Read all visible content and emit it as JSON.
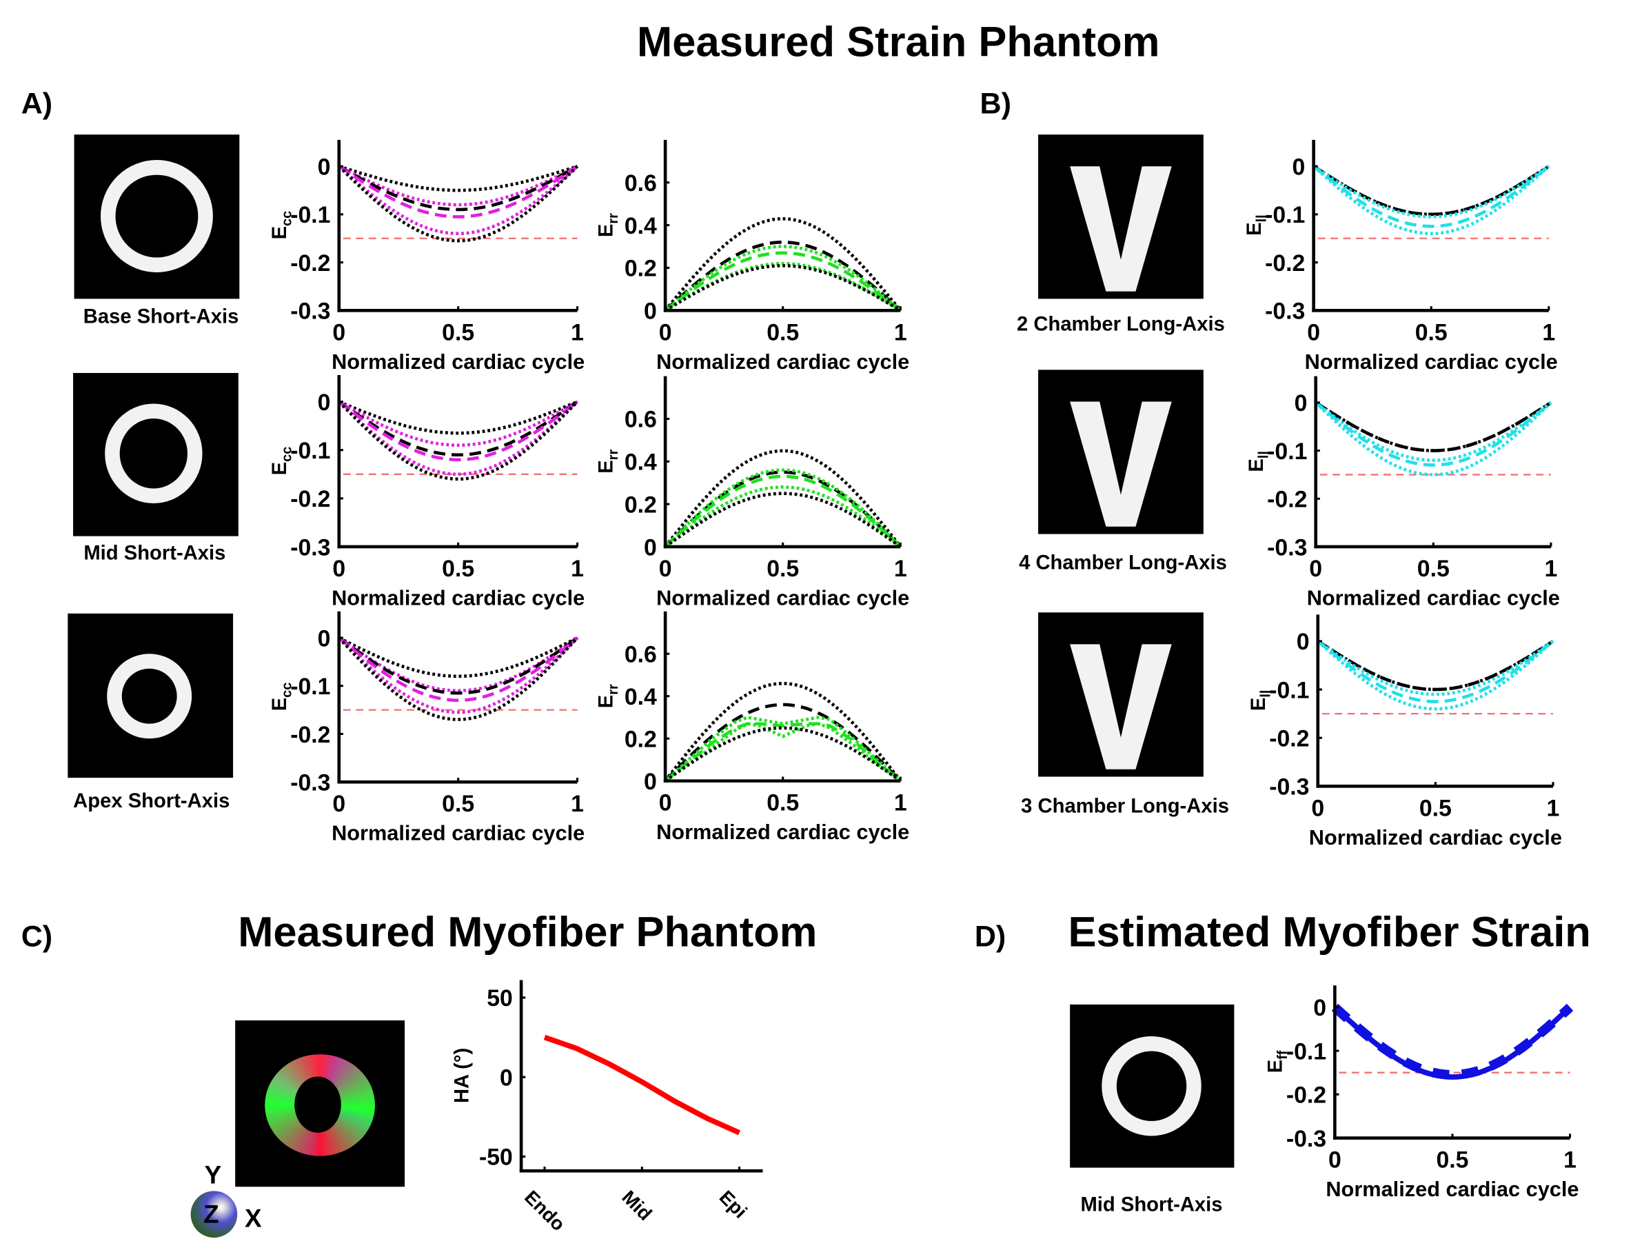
{
  "titles": {
    "main": "Measured Strain Phantom",
    "c": "Measured Myofiber Phantom",
    "d": "Estimated Myofiber Strain"
  },
  "panels": {
    "a": "A)",
    "b": "B)",
    "c": "C)",
    "d": "D)"
  },
  "image_labels": {
    "base": "Base Short-Axis",
    "mid": "Mid Short-Axis",
    "apex": "Apex Short-Axis",
    "ch2": "2 Chamber Long-Axis",
    "ch4": "4 Chamber Long-Axis",
    "ch3": "3 Chamber Long-Axis",
    "d_mid": "Mid Short-Axis"
  },
  "triad": {
    "y": "Y",
    "z": "Z",
    "x": "X"
  },
  "colors": {
    "magenta": "#e020e0",
    "green": "#20e020",
    "cyan": "#20e0e8",
    "blue": "#1010e0",
    "red": "#ff0000",
    "ref": "#f07070",
    "black": "#000000"
  },
  "chart_data": [
    {
      "id": "ecc-base",
      "type": "line",
      "ylabel": "E",
      "ylabel_sub": "cc",
      "xlabel": "Normalized cardiac cycle",
      "xlim": [
        0,
        1
      ],
      "ylim": [
        -0.3,
        0.055
      ],
      "xticks": [
        0,
        0.5,
        1
      ],
      "xtick_labels": [
        "0",
        "0.5",
        "1"
      ],
      "yticks": [
        0,
        -0.1,
        -0.2,
        -0.3
      ],
      "ytick_labels": [
        "0",
        "-0.1",
        "-0.2",
        "-0.3"
      ],
      "reference": -0.15,
      "series": [
        {
          "color": "#000000",
          "style": "dotted",
          "peak": -0.05
        },
        {
          "color": "#e020e0",
          "style": "dotted",
          "peak": -0.08
        },
        {
          "color": "#000000",
          "style": "dashed",
          "peak": -0.09
        },
        {
          "color": "#e020e0",
          "style": "dashed",
          "peak": -0.105
        },
        {
          "color": "#e020e0",
          "style": "dotted",
          "peak": -0.14
        },
        {
          "color": "#000000",
          "style": "dotted",
          "peak": -0.155
        }
      ]
    },
    {
      "id": "err-base",
      "type": "line",
      "ylabel": "E",
      "ylabel_sub": "rr",
      "xlabel": "Normalized cardiac cycle",
      "xlim": [
        0,
        1
      ],
      "ylim": [
        0,
        0.8
      ],
      "xticks": [
        0,
        0.5,
        1
      ],
      "xtick_labels": [
        "0",
        "0.5",
        "1"
      ],
      "yticks": [
        0,
        0.2,
        0.4,
        0.6
      ],
      "ytick_labels": [
        "0",
        "0.2",
        "0.4",
        "0.6"
      ],
      "series": [
        {
          "color": "#000000",
          "style": "dotted",
          "peak": 0.43
        },
        {
          "color": "#000000",
          "style": "dashed",
          "peak": 0.32
        },
        {
          "color": "#20e020",
          "style": "dotted",
          "peak": 0.3
        },
        {
          "color": "#20e020",
          "style": "dashed",
          "peak": 0.27
        },
        {
          "color": "#20e020",
          "style": "dotted",
          "peak": 0.22
        },
        {
          "color": "#000000",
          "style": "dotted",
          "peak": 0.21
        }
      ]
    },
    {
      "id": "ell-2ch",
      "type": "line",
      "ylabel": "E",
      "ylabel_sub": "ll",
      "xlabel": "Normalized cardiac cycle",
      "xlim": [
        0,
        1
      ],
      "ylim": [
        -0.3,
        0.055
      ],
      "xticks": [
        0,
        0.5,
        1
      ],
      "xtick_labels": [
        "0",
        "0.5",
        "1"
      ],
      "yticks": [
        0,
        -0.1,
        -0.2,
        -0.3
      ],
      "ytick_labels": [
        "0",
        "-0.1",
        "-0.2",
        "-0.3"
      ],
      "reference": -0.15,
      "series": [
        {
          "color": "#000000",
          "style": "dotted",
          "peak": -0.1
        },
        {
          "color": "#000000",
          "style": "dashed",
          "peak": -0.1
        },
        {
          "color": "#20e0e8",
          "style": "dotted",
          "peak": -0.105
        },
        {
          "color": "#20e0e8",
          "style": "dashed",
          "peak": -0.125
        },
        {
          "color": "#20e0e8",
          "style": "dotted",
          "peak": -0.14
        }
      ]
    },
    {
      "id": "ecc-mid",
      "type": "line",
      "ylabel": "E",
      "ylabel_sub": "cc",
      "xlabel": "Normalized cardiac cycle",
      "xlim": [
        0,
        1
      ],
      "ylim": [
        -0.3,
        0.055
      ],
      "xticks": [
        0,
        0.5,
        1
      ],
      "xtick_labels": [
        "0",
        "0.5",
        "1"
      ],
      "yticks": [
        0,
        -0.1,
        -0.2,
        -0.3
      ],
      "ytick_labels": [
        "0",
        "-0.1",
        "-0.2",
        "-0.3"
      ],
      "reference": -0.15,
      "series": [
        {
          "color": "#000000",
          "style": "dotted",
          "peak": -0.065
        },
        {
          "color": "#e020e0",
          "style": "dotted",
          "peak": -0.09
        },
        {
          "color": "#000000",
          "style": "dashed",
          "peak": -0.11
        },
        {
          "color": "#e020e0",
          "style": "dashed",
          "peak": -0.12
        },
        {
          "color": "#e020e0",
          "style": "dotted",
          "peak": -0.15
        },
        {
          "color": "#000000",
          "style": "dotted",
          "peak": -0.16
        }
      ]
    },
    {
      "id": "err-mid",
      "type": "line",
      "ylabel": "E",
      "ylabel_sub": "rr",
      "xlabel": "Normalized cardiac cycle",
      "xlim": [
        0,
        1
      ],
      "ylim": [
        0,
        0.8
      ],
      "xticks": [
        0,
        0.5,
        1
      ],
      "xtick_labels": [
        "0",
        "0.5",
        "1"
      ],
      "yticks": [
        0,
        0.2,
        0.4,
        0.6
      ],
      "ytick_labels": [
        "0",
        "0.2",
        "0.4",
        "0.6"
      ],
      "series": [
        {
          "color": "#000000",
          "style": "dotted",
          "peak": 0.45
        },
        {
          "color": "#000000",
          "style": "dashed",
          "peak": 0.35
        },
        {
          "color": "#20e020",
          "style": "dotted",
          "peak": 0.36
        },
        {
          "color": "#20e020",
          "style": "dashed",
          "peak": 0.33
        },
        {
          "color": "#20e020",
          "style": "dotted",
          "peak": 0.28
        },
        {
          "color": "#000000",
          "style": "dotted",
          "peak": 0.25
        }
      ]
    },
    {
      "id": "ell-4ch",
      "type": "line",
      "ylabel": "E",
      "ylabel_sub": "ll",
      "xlabel": "Normalized cardiac cycle",
      "xlim": [
        0,
        1
      ],
      "ylim": [
        -0.3,
        0.055
      ],
      "xticks": [
        0,
        0.5,
        1
      ],
      "xtick_labels": [
        "0",
        "0.5",
        "1"
      ],
      "yticks": [
        0,
        -0.1,
        -0.2,
        -0.3
      ],
      "ytick_labels": [
        "0",
        "-0.1",
        "-0.2",
        "-0.3"
      ],
      "reference": -0.15,
      "series": [
        {
          "color": "#000000",
          "style": "dotted",
          "peak": -0.1
        },
        {
          "color": "#000000",
          "style": "dashed",
          "peak": -0.1
        },
        {
          "color": "#20e0e8",
          "style": "dotted",
          "peak": -0.12
        },
        {
          "color": "#20e0e8",
          "style": "dashed",
          "peak": -0.13
        },
        {
          "color": "#20e0e8",
          "style": "dotted",
          "peak": -0.15
        }
      ]
    },
    {
      "id": "ecc-apex",
      "type": "line",
      "ylabel": "E",
      "ylabel_sub": "cc",
      "xlabel": "Normalized cardiac cycle",
      "xlim": [
        0,
        1
      ],
      "ylim": [
        -0.3,
        0.055
      ],
      "xticks": [
        0,
        0.5,
        1
      ],
      "xtick_labels": [
        "0",
        "0.5",
        "1"
      ],
      "yticks": [
        0,
        -0.1,
        -0.2,
        -0.3
      ],
      "ytick_labels": [
        "0",
        "-0.1",
        "-0.2",
        "-0.3"
      ],
      "reference": -0.15,
      "series": [
        {
          "color": "#000000",
          "style": "dotted",
          "peak": -0.08
        },
        {
          "color": "#e020e0",
          "style": "dotted",
          "peak": -0.11
        },
        {
          "color": "#000000",
          "style": "dashed",
          "peak": -0.115
        },
        {
          "color": "#e020e0",
          "style": "dashed",
          "peak": -0.13
        },
        {
          "color": "#e020e0",
          "style": "dotted",
          "peak": -0.155
        },
        {
          "color": "#000000",
          "style": "dotted",
          "peak": -0.17
        }
      ]
    },
    {
      "id": "err-apex",
      "type": "line",
      "ylabel": "E",
      "ylabel_sub": "rr",
      "xlabel": "Normalized cardiac cycle",
      "xlim": [
        0,
        1
      ],
      "ylim": [
        0,
        0.8
      ],
      "xticks": [
        0,
        0.5,
        1
      ],
      "xtick_labels": [
        "0",
        "0.5",
        "1"
      ],
      "yticks": [
        0,
        0.2,
        0.4,
        0.6
      ],
      "ytick_labels": [
        "0",
        "0.2",
        "0.4",
        "0.6"
      ],
      "series": [
        {
          "color": "#000000",
          "style": "dotted",
          "peak": 0.46
        },
        {
          "color": "#000000",
          "style": "dashed",
          "peak": 0.36
        },
        {
          "color": "#20e020",
          "style": "dotted",
          "x": [
            0,
            0.1,
            0.2,
            0.3,
            0.35,
            0.4,
            0.5,
            0.6,
            0.65,
            0.7,
            0.8,
            0.9,
            1
          ],
          "y": [
            0,
            0.1,
            0.2,
            0.28,
            0.3,
            0.29,
            0.27,
            0.29,
            0.3,
            0.29,
            0.2,
            0.1,
            0
          ]
        },
        {
          "color": "#20e020",
          "style": "dashed",
          "x": [
            0,
            0.1,
            0.2,
            0.3,
            0.35,
            0.4,
            0.5,
            0.6,
            0.65,
            0.7,
            0.8,
            0.9,
            1
          ],
          "y": [
            0,
            0.09,
            0.18,
            0.25,
            0.27,
            0.27,
            0.26,
            0.27,
            0.27,
            0.26,
            0.19,
            0.09,
            0
          ]
        },
        {
          "color": "#20e020",
          "style": "dotted",
          "x": [
            0,
            0.1,
            0.2,
            0.3,
            0.35,
            0.4,
            0.5,
            0.6,
            0.65,
            0.7,
            0.8,
            0.9,
            1
          ],
          "y": [
            0,
            0.08,
            0.16,
            0.24,
            0.27,
            0.26,
            0.21,
            0.26,
            0.27,
            0.25,
            0.17,
            0.08,
            0
          ]
        },
        {
          "color": "#000000",
          "style": "dotted",
          "peak": 0.25
        }
      ]
    },
    {
      "id": "ell-3ch",
      "type": "line",
      "ylabel": "E",
      "ylabel_sub": "ll",
      "xlabel": "Normalized cardiac cycle",
      "xlim": [
        0,
        1
      ],
      "ylim": [
        -0.3,
        0.055
      ],
      "xticks": [
        0,
        0.5,
        1
      ],
      "xtick_labels": [
        "0",
        "0.5",
        "1"
      ],
      "yticks": [
        0,
        -0.1,
        -0.2,
        -0.3
      ],
      "ytick_labels": [
        "0",
        "-0.1",
        "-0.2",
        "-0.3"
      ],
      "reference": -0.15,
      "series": [
        {
          "color": "#000000",
          "style": "dotted",
          "peak": -0.1
        },
        {
          "color": "#000000",
          "style": "dashed",
          "peak": -0.1
        },
        {
          "color": "#20e0e8",
          "style": "dotted",
          "peak": -0.11
        },
        {
          "color": "#20e0e8",
          "style": "dashed",
          "peak": -0.125
        },
        {
          "color": "#20e0e8",
          "style": "dotted",
          "peak": -0.14
        }
      ]
    },
    {
      "id": "ha",
      "type": "line",
      "ylabel": "HA (°)",
      "ylabel_sub": "",
      "xlabel": "",
      "xlim": [
        -0.24,
        2.24
      ],
      "ylim": [
        -59,
        61
      ],
      "xticks": [
        0,
        1,
        2
      ],
      "xtick_labels": [
        "Endo",
        "Mid",
        "Epi"
      ],
      "yticks": [
        50,
        0,
        -50
      ],
      "ytick_labels": [
        "50",
        "0",
        "-50"
      ],
      "series": [
        {
          "color": "#ff0000",
          "style": "thick",
          "x": [
            0,
            0.33,
            0.67,
            1,
            1.33,
            1.67,
            2
          ],
          "y": [
            25,
            18,
            8,
            -3,
            -15,
            -26,
            -35
          ]
        }
      ]
    },
    {
      "id": "eff",
      "type": "line",
      "ylabel": "E",
      "ylabel_sub": "ff",
      "xlabel": "Normalized cardiac cycle",
      "xlim": [
        0,
        1
      ],
      "ylim": [
        -0.3,
        0.05
      ],
      "xticks": [
        0,
        0.5,
        1
      ],
      "xtick_labels": [
        "0",
        "0.5",
        "1"
      ],
      "yticks": [
        0,
        -0.1,
        -0.2,
        -0.3
      ],
      "ytick_labels": [
        "0",
        "-0.1",
        "-0.2",
        "-0.3"
      ],
      "reference": -0.15,
      "series": [
        {
          "color": "#1010e0",
          "style": "thick",
          "peak": -0.16
        },
        {
          "color": "#1010e0",
          "style": "thickdash",
          "peak": -0.155
        }
      ]
    }
  ]
}
